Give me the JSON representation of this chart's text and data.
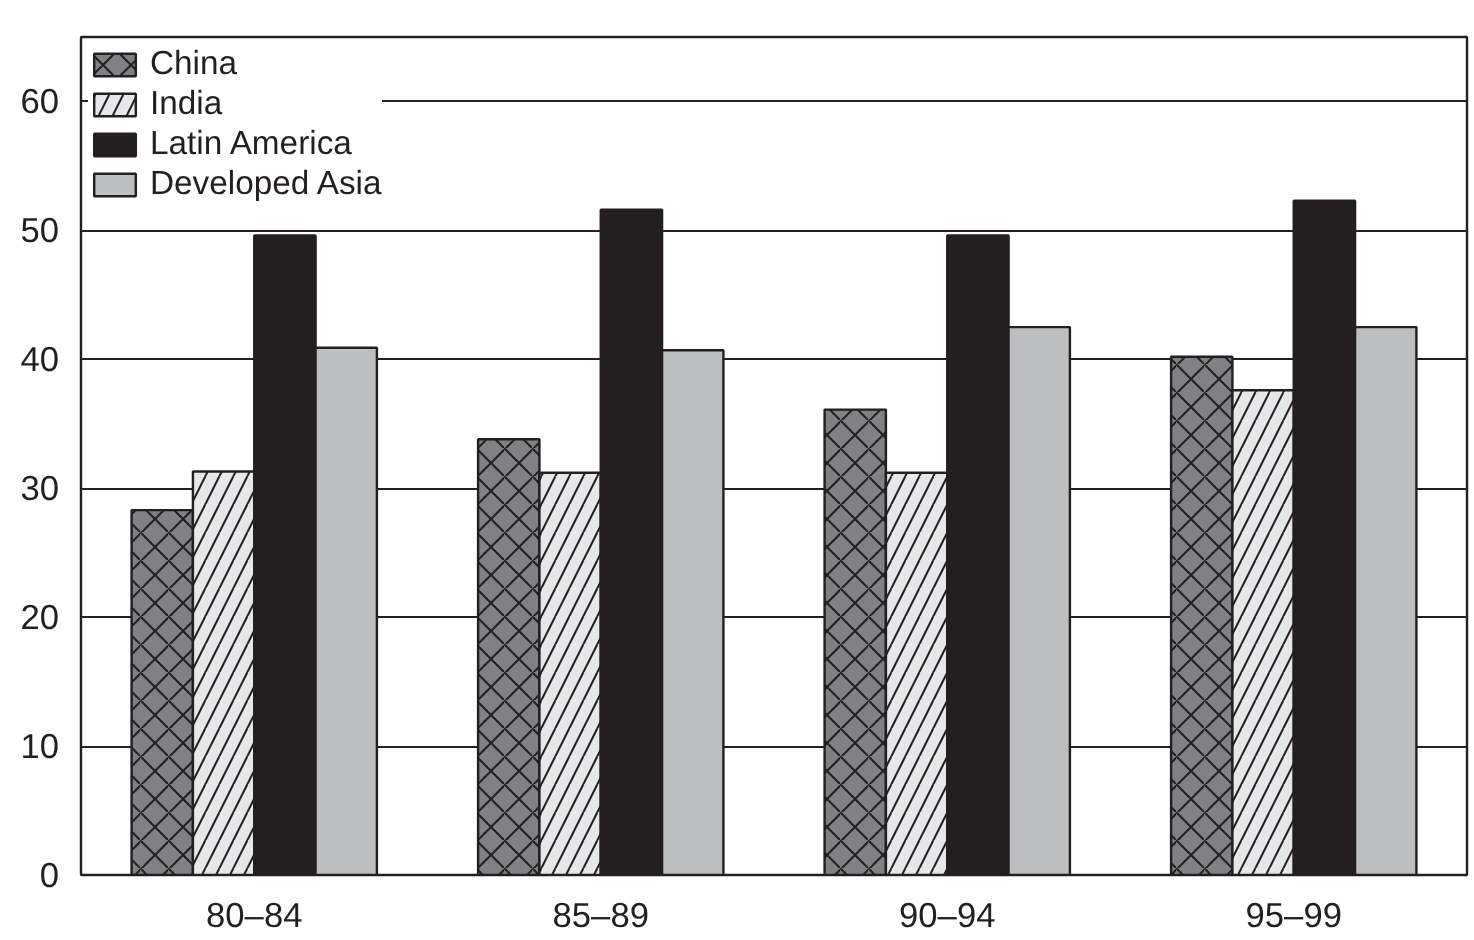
{
  "chart_data": {
    "type": "bar",
    "categories": [
      "80–84",
      "85–89",
      "90–94",
      "95–99"
    ],
    "series": [
      {
        "name": "China",
        "color": "#808184",
        "values": [
          28.3,
          33.8,
          36.1,
          40.2
        ]
      },
      {
        "name": "India",
        "color": "#e6e7e8",
        "values": [
          31.3,
          31.2,
          31.2,
          37.6
        ]
      },
      {
        "name": "Latin America",
        "color": "#231f20",
        "values": [
          49.6,
          51.6,
          49.6,
          52.3
        ]
      },
      {
        "name": "Developed Asia",
        "color": "#bcbec0",
        "values": [
          40.9,
          40.7,
          42.5,
          42.5
        ]
      }
    ],
    "ylim": [
      0,
      65
    ],
    "yticks": [
      0,
      10,
      20,
      30,
      40,
      50,
      60
    ],
    "grid": "y",
    "legend": "top left"
  }
}
